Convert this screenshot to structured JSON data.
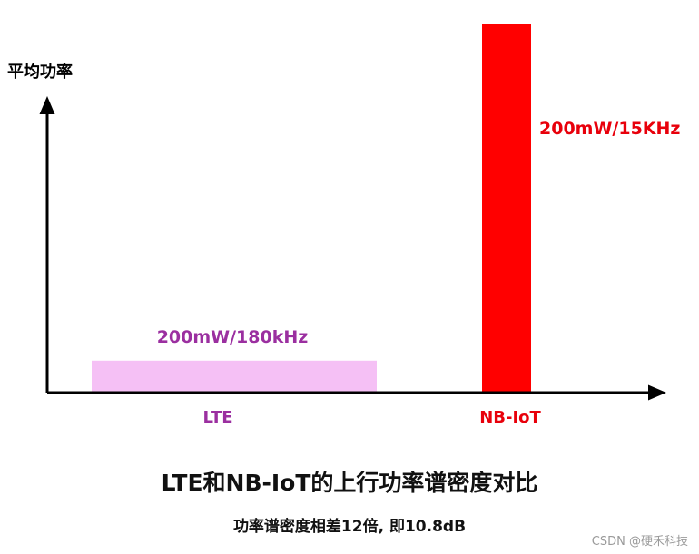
{
  "chart_data": {
    "type": "bar",
    "title": "LTE和NB-IoT的上行功率谱密度对比",
    "subtitle": "功率谱密度相差12倍, 即10.8dB",
    "ylabel": "平均功率",
    "xlabel": "",
    "categories": [
      "LTE",
      "NB-IoT"
    ],
    "values": [
      200,
      2400
    ],
    "data_labels": [
      "200mW/180kHz",
      "200mW/15KHz"
    ],
    "colors": [
      "#f5c0f5",
      "#ff0000"
    ],
    "label_colors": [
      "#9b2fa0",
      "#e8000b"
    ],
    "ylim": [
      0,
      2400
    ],
    "grid": false,
    "legend": "none"
  },
  "watermark": "CSDN @硬禾科技"
}
